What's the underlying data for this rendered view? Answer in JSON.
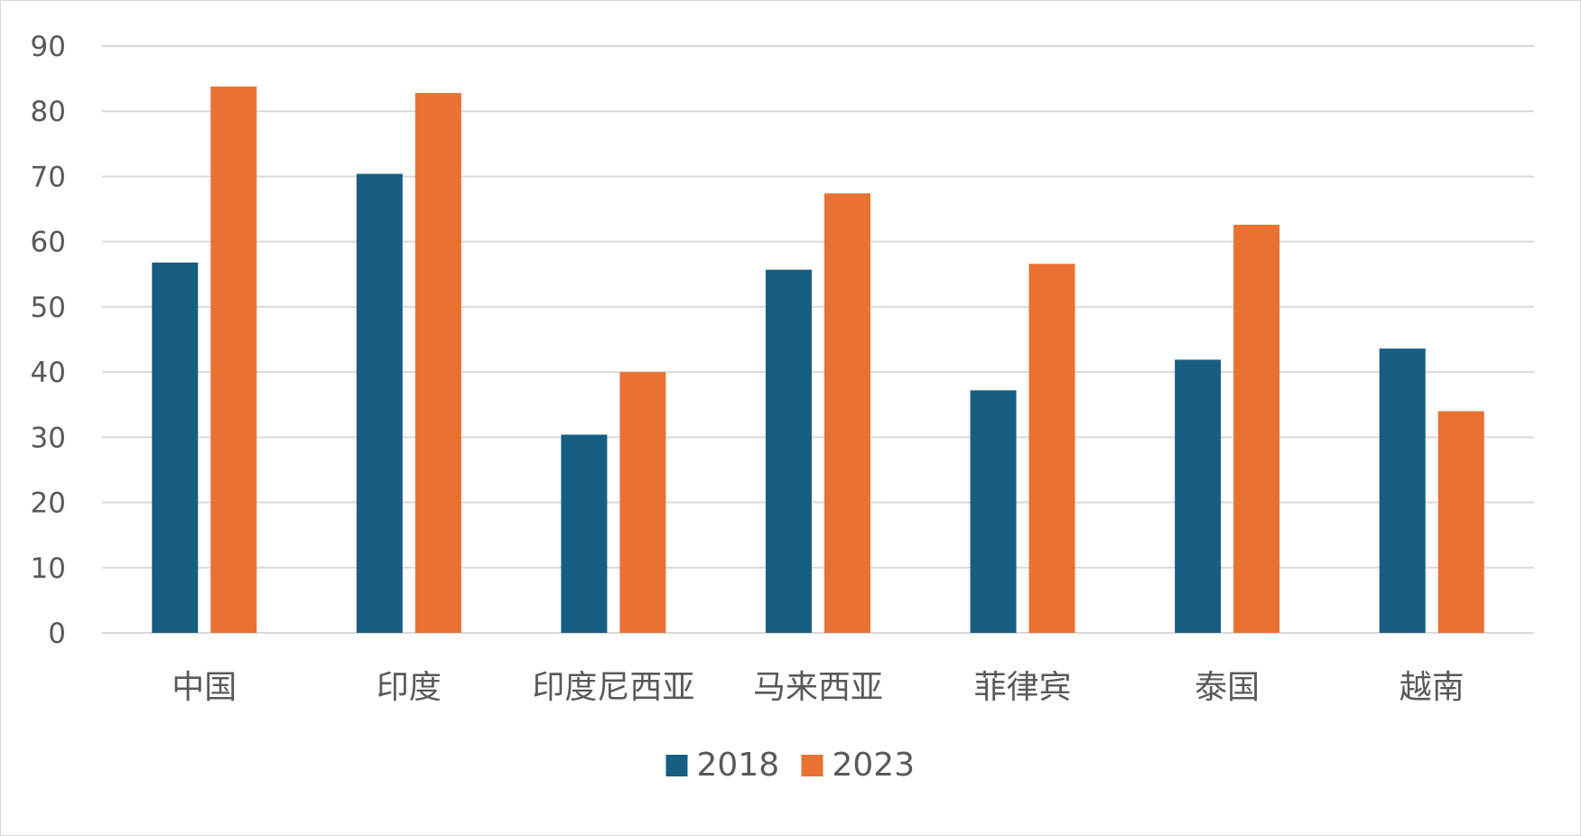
{
  "chart_data": {
    "type": "bar",
    "categories": [
      "中国",
      "印度",
      "印度尼西亚",
      "马来西亚",
      "菲律宾",
      "泰国",
      "越南"
    ],
    "series": [
      {
        "name": "2018",
        "color": "#175e82",
        "values": [
          56.8,
          70.4,
          30.4,
          55.7,
          37.2,
          41.9,
          43.6
        ]
      },
      {
        "name": "2023",
        "color": "#e97132",
        "values": [
          83.8,
          82.8,
          40.0,
          67.4,
          56.6,
          62.6,
          34.0
        ]
      }
    ],
    "ylim": [
      0,
      90
    ],
    "yticks": [
      "0",
      "10",
      "20",
      "30",
      "40",
      "50",
      "60",
      "70",
      "80",
      "90"
    ],
    "grid": true,
    "legend_position": "bottom",
    "title": "",
    "xlabel": "",
    "ylabel": ""
  }
}
